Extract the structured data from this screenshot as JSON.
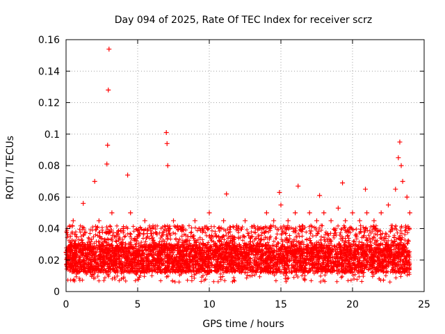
{
  "chart_data": {
    "type": "scatter",
    "title": "Day 094 of 2025, Rate Of TEC Index for receiver scrz",
    "xlabel": "GPS time / hours",
    "ylabel": "ROTI / TECUs",
    "xlim": [
      0,
      25
    ],
    "ylim": [
      0,
      0.16
    ],
    "xticks": [
      0,
      5,
      10,
      15,
      20,
      25
    ],
    "yticks": [
      0,
      0.02,
      0.04,
      0.06,
      0.08,
      0.1,
      0.12,
      0.14,
      0.16
    ],
    "xtick_labels": [
      "0",
      "5",
      "10",
      "15",
      "20",
      "25"
    ],
    "ytick_labels": [
      "0",
      "0.02",
      "0.04",
      "0.06",
      "0.08",
      "0.1",
      "0.12",
      "0.14",
      "0.16"
    ],
    "grid": true,
    "marker": "+",
    "marker_color": "#ff0000",
    "series": [
      {
        "name": "ROTI",
        "x": [
          0.0,
          0.3,
          0.5,
          1.0,
          1.2,
          1.5,
          2.0,
          2.3,
          2.5,
          2.85,
          2.9,
          2.95,
          3.0,
          3.2,
          3.5,
          4.0,
          4.3,
          4.5,
          5.0,
          5.5,
          6.0,
          6.5,
          7.0,
          7.05,
          7.1,
          7.5,
          8.0,
          8.5,
          9.0,
          9.5,
          10.0,
          10.5,
          11.0,
          11.2,
          11.5,
          12.0,
          12.5,
          13.0,
          13.5,
          14.0,
          14.5,
          14.9,
          15.0,
          15.5,
          16.0,
          16.2,
          16.5,
          17.0,
          17.5,
          17.7,
          18.0,
          18.5,
          19.0,
          19.3,
          19.5,
          20.0,
          20.5,
          20.9,
          21.0,
          21.5,
          22.0,
          22.5,
          23.0,
          23.2,
          23.3,
          23.4,
          23.5,
          23.8,
          24.0
        ],
        "y": [
          0.025,
          0.035,
          0.045,
          0.03,
          0.056,
          0.03,
          0.07,
          0.045,
          0.03,
          0.081,
          0.093,
          0.128,
          0.154,
          0.05,
          0.035,
          0.04,
          0.074,
          0.05,
          0.035,
          0.045,
          0.04,
          0.03,
          0.101,
          0.094,
          0.08,
          0.045,
          0.04,
          0.035,
          0.045,
          0.04,
          0.05,
          0.035,
          0.045,
          0.062,
          0.035,
          0.04,
          0.045,
          0.035,
          0.04,
          0.05,
          0.045,
          0.063,
          0.055,
          0.045,
          0.05,
          0.067,
          0.04,
          0.05,
          0.045,
          0.061,
          0.05,
          0.045,
          0.053,
          0.069,
          0.045,
          0.05,
          0.045,
          0.065,
          0.05,
          0.045,
          0.05,
          0.055,
          0.065,
          0.085,
          0.095,
          0.08,
          0.07,
          0.06,
          0.05
        ]
      }
    ]
  }
}
